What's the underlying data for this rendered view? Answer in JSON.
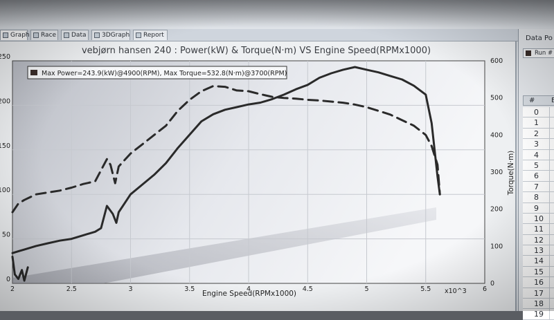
{
  "tabs": [
    {
      "label": "Graph",
      "icon": "graph-icon",
      "active": true
    },
    {
      "label": "Race",
      "icon": "race-icon",
      "active": false
    },
    {
      "label": "Data",
      "icon": "data-table-icon",
      "active": false
    },
    {
      "label": "3DGraph",
      "icon": "3d-graph-icon",
      "active": false
    },
    {
      "label": "Report",
      "icon": "report-icon",
      "active": false
    }
  ],
  "data_panel": {
    "title": "Data Po",
    "run_label": "Run #",
    "header_index": "#",
    "header_col": "E",
    "rows": [
      "0",
      "1",
      "2",
      "3",
      "4",
      "5",
      "6",
      "7",
      "8",
      "9",
      "10",
      "11",
      "12",
      "13",
      "14",
      "15",
      "16",
      "17",
      "18",
      "19"
    ]
  },
  "chart_data": {
    "type": "line",
    "title": "vebjørn hansen 240 : Power(kW) & Torque(N·m) VS Engine Speed(RPMx1000)",
    "legend_text": "Max Power=243.9(kW)@4900(RPM), Max Torque=532.8(N·m)@3700(RPM)",
    "legend_swatch_color": "#3a2e2a",
    "xlabel": "Engine Speed(RPMx1000)",
    "x_multiplier_label": "x10^3",
    "ylabel_right": "Torque(N·m)",
    "xlim": [
      2,
      6
    ],
    "ylim_left": [
      0,
      250
    ],
    "ylim_right": [
      0,
      600
    ],
    "x_ticks": [
      "2",
      "2.5",
      "3",
      "3.5",
      "4",
      "4.5",
      "5",
      "5.5",
      "6"
    ],
    "y_ticks_left": [
      "0",
      "50",
      "100",
      "150",
      "200",
      "250"
    ],
    "y_ticks_right": [
      "0",
      "100",
      "200",
      "300",
      "400",
      "500",
      "600"
    ],
    "grid": true,
    "series": [
      {
        "axis": "left",
        "style": "solid",
        "color": "#2a2a2a",
        "x": [
          2.0,
          2.05,
          2.1,
          2.2,
          2.3,
          2.4,
          2.5,
          2.6,
          2.7,
          2.75,
          2.8,
          2.85,
          2.88,
          2.9,
          2.95,
          3.0,
          3.1,
          3.2,
          3.3,
          3.4,
          3.5,
          3.6,
          3.7,
          3.8,
          3.9,
          4.0,
          4.1,
          4.2,
          4.3,
          4.4,
          4.5,
          4.6,
          4.7,
          4.8,
          4.9,
          5.0,
          5.1,
          5.2,
          5.3,
          5.4,
          5.5,
          5.55,
          5.6,
          5.62
        ],
        "values": [
          34,
          36,
          38,
          42,
          45,
          48,
          50,
          54,
          58,
          62,
          87,
          78,
          68,
          80,
          90,
          100,
          111,
          122,
          135,
          152,
          167,
          182,
          190,
          195,
          198,
          201,
          203,
          207,
          212,
          218,
          223,
          231,
          236,
          240,
          243,
          240,
          237,
          233,
          229,
          222,
          212,
          180,
          120,
          100
        ]
      },
      {
        "axis": "right",
        "style": "dashed",
        "color": "#2a2a2a",
        "x": [
          2.0,
          2.05,
          2.1,
          2.2,
          2.3,
          2.4,
          2.5,
          2.6,
          2.7,
          2.75,
          2.8,
          2.83,
          2.85,
          2.87,
          2.9,
          3.0,
          3.1,
          3.2,
          3.3,
          3.4,
          3.5,
          3.6,
          3.7,
          3.8,
          3.9,
          4.0,
          4.1,
          4.2,
          4.3,
          4.4,
          4.5,
          4.6,
          4.7,
          4.8,
          4.9,
          5.0,
          5.1,
          5.2,
          5.3,
          5.4,
          5.5,
          5.55,
          5.6,
          5.62
        ],
        "values": [
          192,
          215,
          225,
          240,
          245,
          250,
          258,
          268,
          275,
          305,
          335,
          320,
          295,
          270,
          315,
          350,
          375,
          400,
          425,
          465,
          495,
          518,
          532,
          530,
          520,
          518,
          510,
          503,
          500,
          498,
          495,
          493,
          490,
          487,
          482,
          475,
          465,
          455,
          440,
          425,
          400,
          370,
          320,
          240
        ]
      },
      {
        "axis": "left",
        "style": "solid",
        "color": "#2a2a2a",
        "x": [
          2.0,
          2.02,
          2.05,
          2.08,
          2.1,
          2.13
        ],
        "values": [
          30,
          10,
          5,
          15,
          3,
          18
        ]
      }
    ]
  }
}
